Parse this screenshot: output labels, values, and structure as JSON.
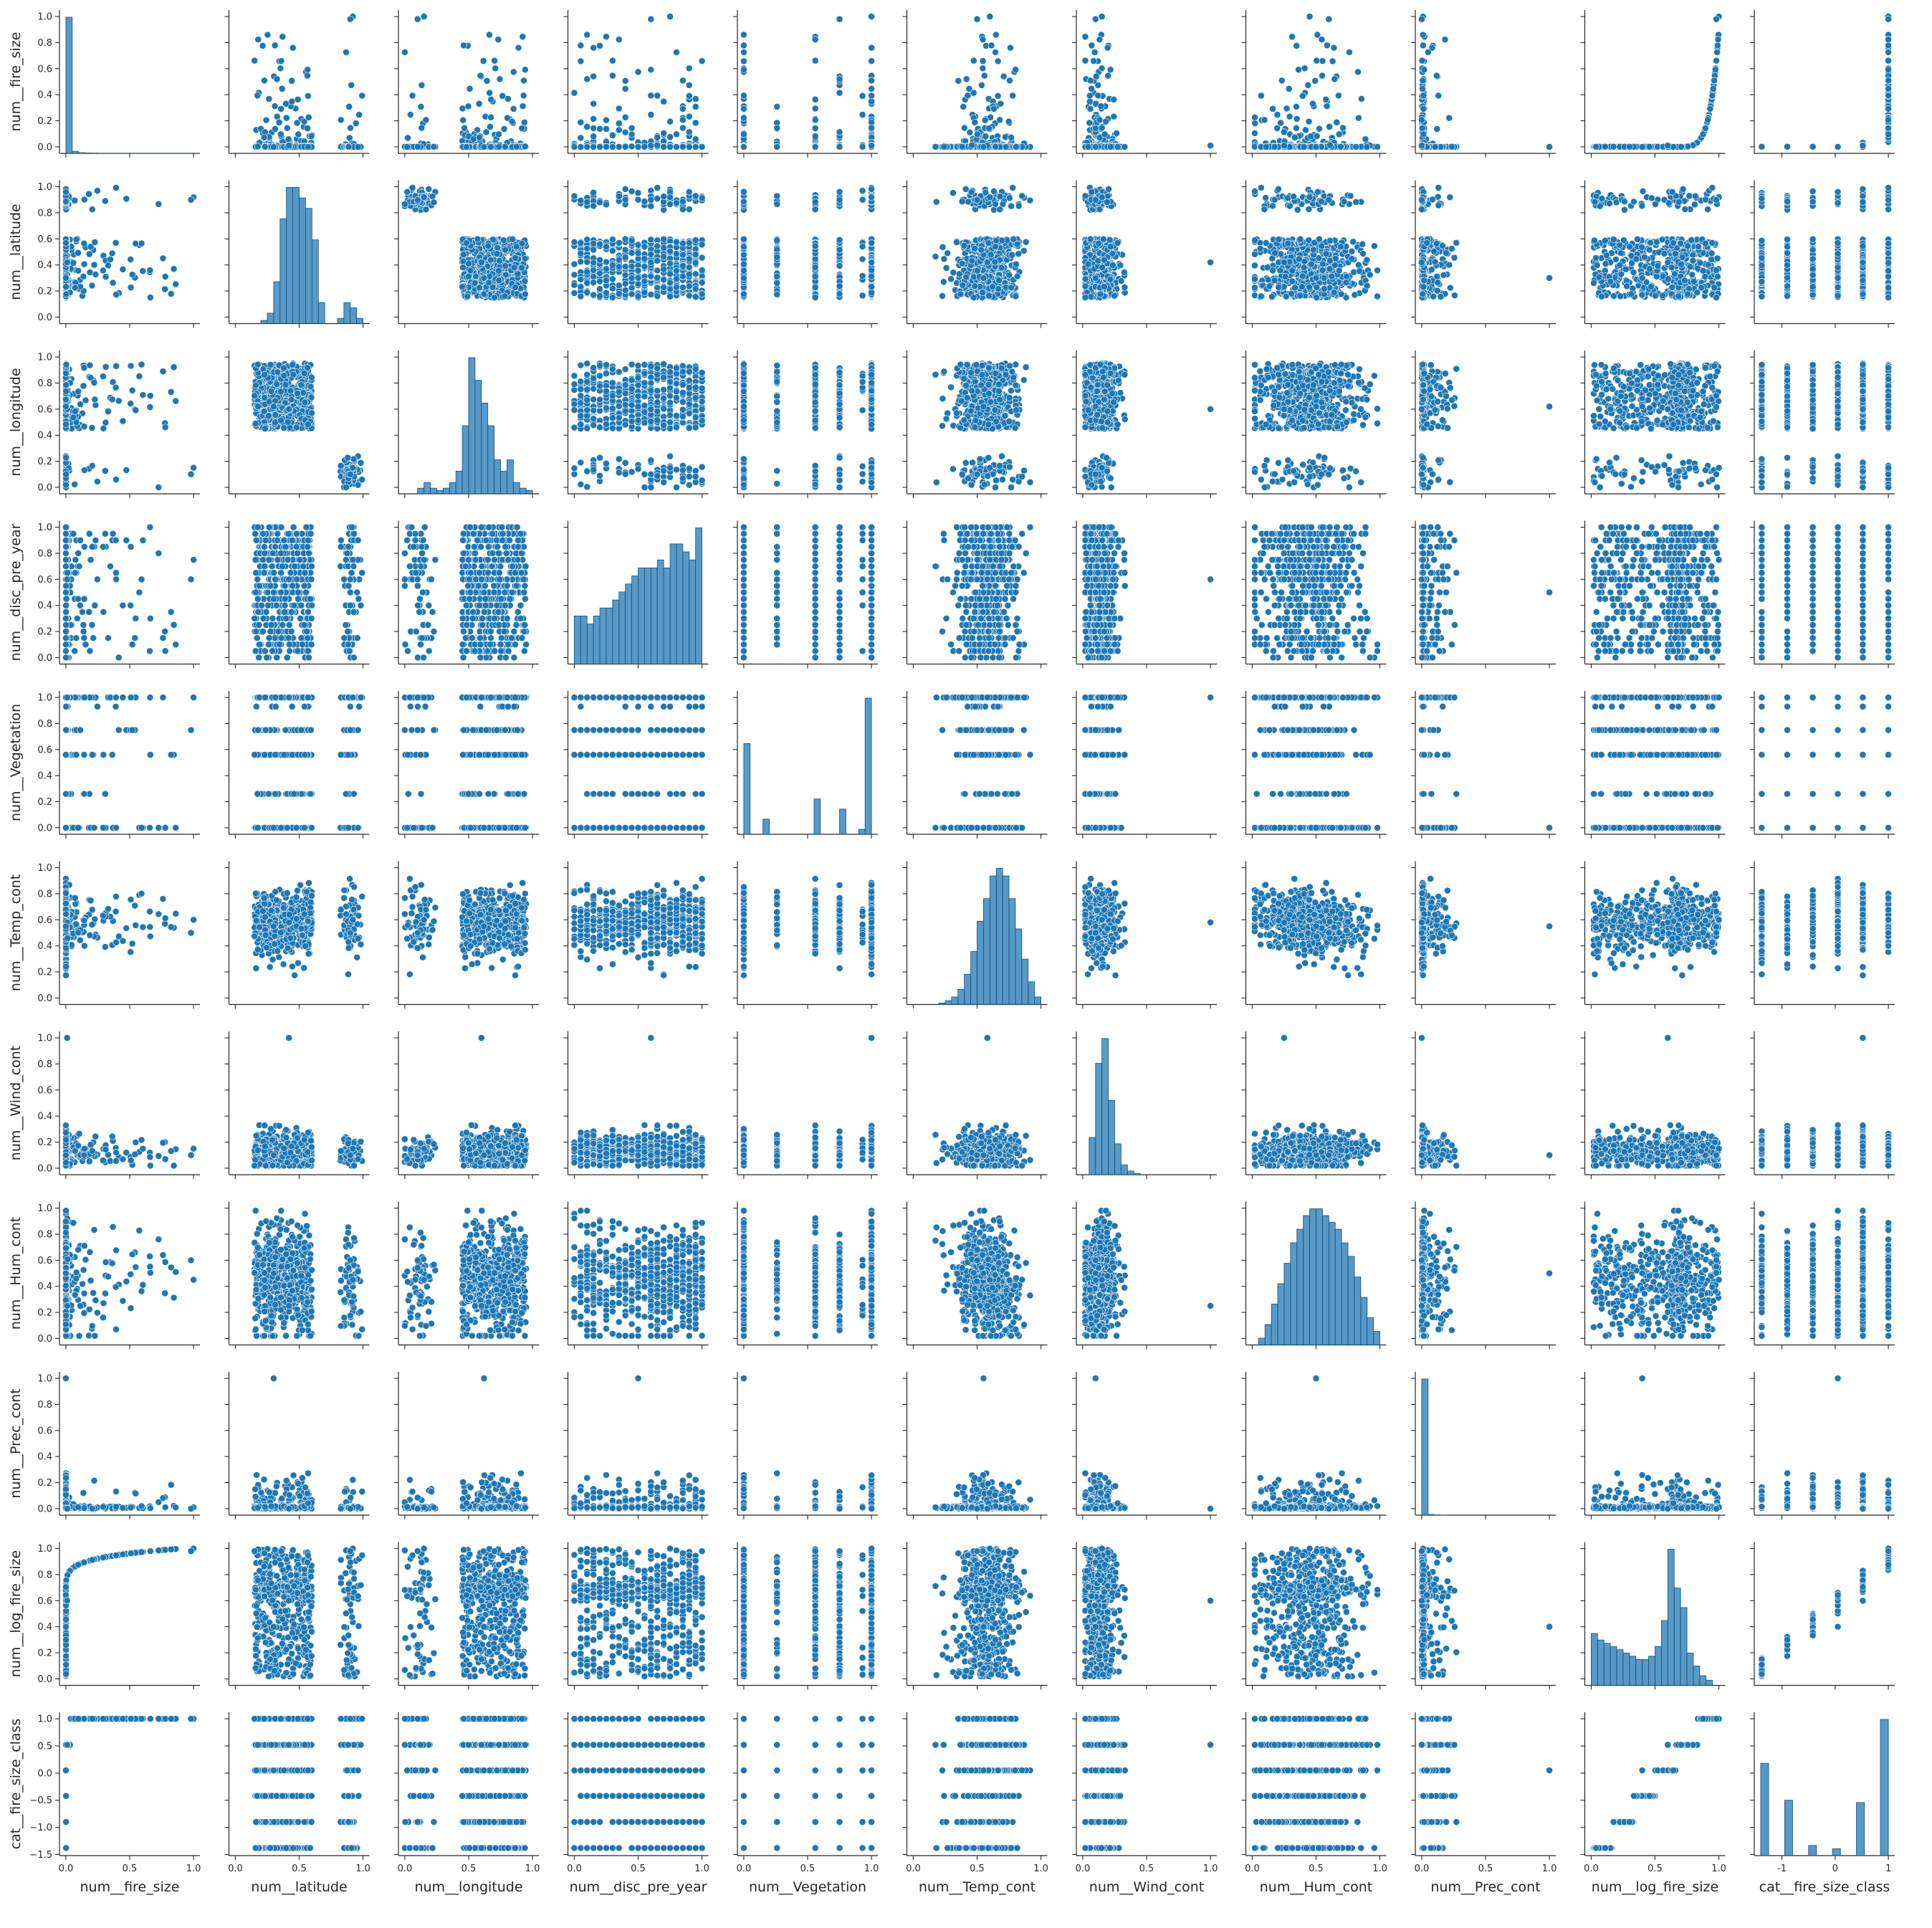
{
  "chart_data": {
    "type": "scatter",
    "kind": "pairplot",
    "point_color": "#1f77b4",
    "hist_color": "#1f77b4",
    "variables": [
      "num__fire_size",
      "num__latitude",
      "num__longitude",
      "num__disc_pre_year",
      "num__Vegetation",
      "num__Temp_cont",
      "num__Wind_cont",
      "num__Hum_cont",
      "num__Prec_cont",
      "num__log_fire_size",
      "cat__fire_size_class"
    ],
    "ranges": [
      [
        0,
        1
      ],
      [
        0,
        1
      ],
      [
        0,
        1
      ],
      [
        0,
        1
      ],
      [
        0,
        1
      ],
      [
        0,
        1
      ],
      [
        0,
        1
      ],
      [
        0,
        1
      ],
      [
        0,
        1
      ],
      [
        0,
        1
      ],
      [
        -1.4,
        1
      ]
    ],
    "ticks": [
      {
        "v": [
          0.0,
          0.5,
          1.0
        ],
        "l": [
          "0.0",
          "0.5",
          "1.0"
        ]
      },
      {
        "v": [
          0.0,
          0.5,
          1.0
        ],
        "l": [
          "0.0",
          "0.5",
          "1.0"
        ]
      },
      {
        "v": [
          0.0,
          0.5,
          1.0
        ],
        "l": [
          "0.0",
          "0.5",
          "1.0"
        ]
      },
      {
        "v": [
          0.0,
          0.5,
          1.0
        ],
        "l": [
          "0.0",
          "0.5",
          "1.0"
        ]
      },
      {
        "v": [
          0.0,
          0.5,
          1.0
        ],
        "l": [
          "0.0",
          "0.5",
          "1.0"
        ]
      },
      {
        "v": [
          0.0,
          0.5,
          1.0
        ],
        "l": [
          "0.0",
          "0.5",
          "1.0"
        ]
      },
      {
        "v": [
          0.0,
          0.5,
          1.0
        ],
        "l": [
          "0.0",
          "0.5",
          "1.0"
        ]
      },
      {
        "v": [
          0.0,
          0.5,
          1.0
        ],
        "l": [
          "0.0",
          "0.5",
          "1.0"
        ]
      },
      {
        "v": [
          0.0,
          0.5,
          1.0
        ],
        "l": [
          "0.0",
          "0.5",
          "1.0"
        ]
      },
      {
        "v": [
          0.0,
          0.5,
          1.0
        ],
        "l": [
          "0.0",
          "0.5",
          "1.0"
        ]
      },
      {
        "v": [
          -1,
          0,
          1
        ],
        "l": [
          "-1",
          "0",
          "1"
        ]
      }
    ],
    "yticks": [
      {
        "v": [
          0.0,
          0.2,
          0.4,
          0.6,
          0.8,
          1.0
        ],
        "l": [
          "0.0",
          "0.2",
          "0.4",
          "0.6",
          "0.8",
          "1.0"
        ]
      },
      {
        "v": [
          0.0,
          0.2,
          0.4,
          0.6,
          0.8,
          1.0
        ],
        "l": [
          "0.0",
          "0.2",
          "0.4",
          "0.6",
          "0.8",
          "1.0"
        ]
      },
      {
        "v": [
          0.0,
          0.2,
          0.4,
          0.6,
          0.8,
          1.0
        ],
        "l": [
          "0.0",
          "0.2",
          "0.4",
          "0.6",
          "0.8",
          "1.0"
        ]
      },
      {
        "v": [
          0.0,
          0.2,
          0.4,
          0.6,
          0.8,
          1.0
        ],
        "l": [
          "0.0",
          "0.2",
          "0.4",
          "0.6",
          "0.8",
          "1.0"
        ]
      },
      {
        "v": [
          0.0,
          0.2,
          0.4,
          0.6,
          0.8,
          1.0
        ],
        "l": [
          "0.0",
          "0.2",
          "0.4",
          "0.6",
          "0.8",
          "1.0"
        ]
      },
      {
        "v": [
          0.0,
          0.2,
          0.4,
          0.6,
          0.8,
          1.0
        ],
        "l": [
          "0.0",
          "0.2",
          "0.4",
          "0.6",
          "0.8",
          "1.0"
        ]
      },
      {
        "v": [
          0.0,
          0.2,
          0.4,
          0.6,
          0.8,
          1.0
        ],
        "l": [
          "0.0",
          "0.2",
          "0.4",
          "0.6",
          "0.8",
          "1.0"
        ]
      },
      {
        "v": [
          0.0,
          0.2,
          0.4,
          0.6,
          0.8,
          1.0
        ],
        "l": [
          "0.0",
          "0.2",
          "0.4",
          "0.6",
          "0.8",
          "1.0"
        ]
      },
      {
        "v": [
          0.0,
          0.2,
          0.4,
          0.6,
          0.8,
          1.0
        ],
        "l": [
          "0.0",
          "0.2",
          "0.4",
          "0.6",
          "0.8",
          "1.0"
        ]
      },
      {
        "v": [
          0.0,
          0.2,
          0.4,
          0.6,
          0.8,
          1.0
        ],
        "l": [
          "0.0",
          "0.2",
          "0.4",
          "0.6",
          "0.8",
          "1.0"
        ]
      },
      {
        "v": [
          -1.5,
          -1.0,
          -0.5,
          0.0,
          0.5,
          1.0
        ],
        "l": [
          "−1.5",
          "−1.0",
          "−0.5",
          "0.0",
          "0.5",
          "1.0"
        ]
      }
    ],
    "diagonal": "histogram",
    "histograms": [
      [
        98,
        1.5,
        0.5,
        0.3,
        0.2,
        0.1,
        0.1,
        0.1,
        0.1,
        0.1,
        0.1,
        0.1,
        0.1,
        0.1,
        0.1,
        0.1,
        0.1,
        0.1,
        0.1,
        0.1
      ],
      [
        0,
        0,
        0,
        0,
        0.3,
        1,
        4,
        10,
        13,
        13,
        12,
        11,
        8,
        2,
        0,
        0,
        0.5,
        2,
        1.5,
        0.5
      ],
      [
        0,
        0,
        0.5,
        1,
        0.5,
        0.3,
        0.5,
        1,
        2,
        6,
        12,
        10,
        8,
        6,
        3,
        2,
        3,
        1,
        0.5,
        0.3
      ],
      [
        3,
        3,
        2.5,
        3,
        3.5,
        3.5,
        4,
        4.5,
        5,
        5.5,
        6,
        6,
        6,
        6.5,
        6,
        7.5,
        7.5,
        7,
        6.5,
        8.5
      ],
      [
        36,
        0,
        0,
        6,
        0,
        0,
        0,
        0,
        0,
        0,
        0,
        14,
        0,
        0,
        0,
        10,
        0,
        0,
        2,
        54
      ],
      [
        0,
        0,
        0,
        0,
        0.2,
        0.5,
        1,
        2,
        4,
        7,
        11,
        14,
        17,
        18,
        17,
        14,
        10,
        6,
        3,
        1
      ],
      [
        0,
        3,
        9,
        11,
        6,
        2.5,
        0.8,
        0.3,
        0.1,
        0,
        0,
        0,
        0,
        0,
        0,
        0,
        0,
        0,
        0,
        0
      ],
      [
        0,
        0.5,
        1.5,
        3,
        4.5,
        6,
        7.5,
        8.5,
        9.5,
        10,
        10,
        9.5,
        9,
        8.5,
        7.5,
        6.5,
        5,
        3.5,
        2,
        1
      ],
      [
        99,
        0.5,
        0.2,
        0.1,
        0,
        0,
        0,
        0,
        0,
        0,
        0,
        0,
        0,
        0,
        0,
        0,
        0,
        0,
        0,
        0
      ],
      [
        8,
        7,
        6.5,
        6,
        5.5,
        5,
        4.5,
        4,
        4,
        4.5,
        6,
        10,
        21,
        15,
        12,
        5,
        3,
        1.5,
        0.8,
        0
      ],
      [
        20,
        0,
        0,
        12,
        0,
        0,
        2.2,
        0,
        0,
        1.5,
        0,
        0,
        11.5,
        0,
        0,
        29.5
      ]
    ],
    "xlabel": "",
    "ylabel": "",
    "grid": false,
    "legend": "none"
  }
}
